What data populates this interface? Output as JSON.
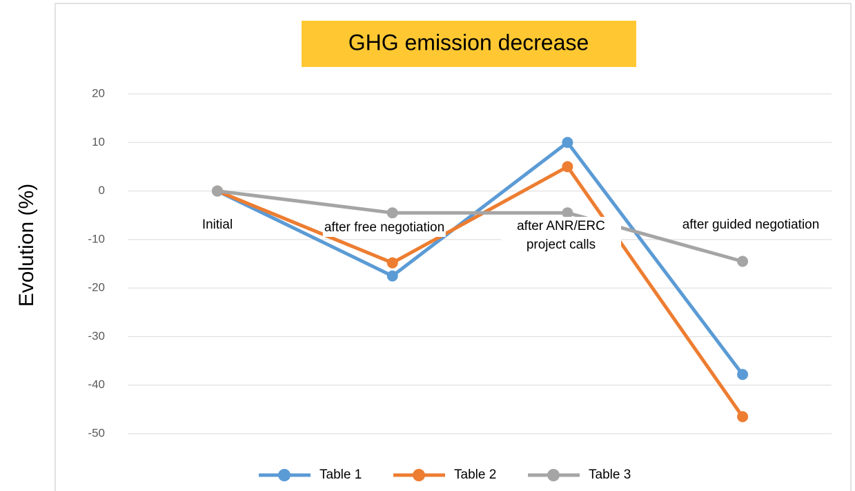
{
  "chart_data": {
    "type": "line",
    "title": "GHG emission decrease",
    "y_label": "Evolution (%)",
    "categories": [
      "Initial",
      "after free negotiation",
      "after ANR/ERC project calls",
      "after guided negotiation"
    ],
    "series": [
      {
        "name": "Table 1",
        "color": "#5b9bd5",
        "values": [
          0,
          -17.5,
          10,
          -37.8
        ]
      },
      {
        "name": "Table 2",
        "color": "#ed7d31",
        "values": [
          0,
          -14.8,
          5,
          -46.5
        ]
      },
      {
        "name": "Table 3",
        "color": "#a5a5a5",
        "values": [
          0,
          -4.5,
          -4.5,
          -14.5
        ]
      }
    ],
    "ylim": [
      -50,
      20
    ],
    "yticks": [
      -50,
      -40,
      -30,
      -20,
      -10,
      0,
      10,
      20
    ],
    "grid": true,
    "legend": "bottom"
  }
}
